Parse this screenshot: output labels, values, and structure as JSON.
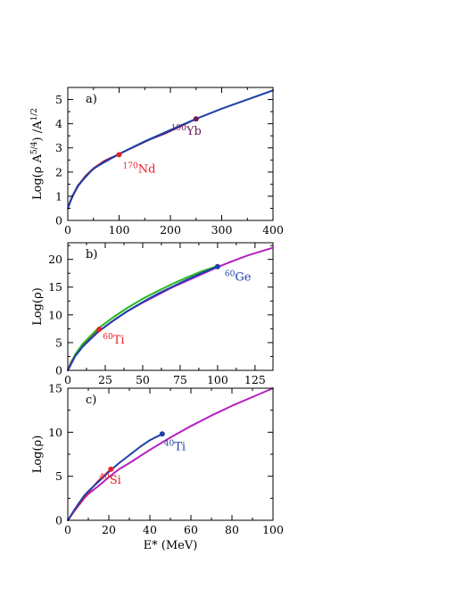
{
  "chart_data": [
    {
      "type": "line",
      "panel_label": "a)",
      "xlabel": "",
      "ylabel": "Log(ρ A^{5/4}) /A^{1/2}",
      "xlim": [
        0,
        400
      ],
      "ylim": [
        0,
        5.5
      ],
      "xticks": [
        0,
        100,
        200,
        300,
        400
      ],
      "yticks": [
        0,
        1,
        2,
        3,
        4,
        5
      ],
      "grid": false,
      "series": [
        {
          "name": "170Nd",
          "color": "#e8202a",
          "x": [
            0,
            2,
            5,
            10,
            20,
            35,
            50,
            70,
            85,
            100
          ],
          "y": [
            0.5,
            0.62,
            0.8,
            1.05,
            1.45,
            1.85,
            2.15,
            2.45,
            2.6,
            2.72
          ]
        },
        {
          "name": "190Yb",
          "color": "#6b1a5a",
          "x": [
            0,
            2,
            5,
            10,
            20,
            35,
            50,
            70,
            100,
            130,
            160,
            190,
            220,
            250
          ],
          "y": [
            0.48,
            0.6,
            0.78,
            1.03,
            1.42,
            1.83,
            2.13,
            2.42,
            2.75,
            3.05,
            3.35,
            3.6,
            3.9,
            4.2
          ]
        },
        {
          "name": "",
          "color": "#1f3fa8",
          "x": [
            0,
            5,
            10,
            20,
            50,
            100,
            150,
            200,
            250,
            300,
            350,
            400
          ],
          "y": [
            0.5,
            0.8,
            1.05,
            1.45,
            2.15,
            2.75,
            3.27,
            3.74,
            4.2,
            4.62,
            5.0,
            5.38
          ]
        }
      ],
      "markers": [
        {
          "label": "170",
          "element": "Nd",
          "x": 100,
          "y": 2.72,
          "color": "#e8202a",
          "label_color": "#e8202a"
        },
        {
          "label": "190",
          "element": "Yb",
          "x": 250,
          "y": 4.2,
          "color": "#6b1a5a",
          "label_color": "#6b1a5a"
        }
      ]
    },
    {
      "type": "line",
      "panel_label": "b)",
      "xlabel": "",
      "ylabel": "Log(ρ)",
      "xlim": [
        0,
        137
      ],
      "ylim": [
        0,
        23
      ],
      "xticks": [
        0,
        25,
        50,
        75,
        100,
        125
      ],
      "yticks": [
        0,
        5,
        10,
        15,
        20
      ],
      "grid": false,
      "series": [
        {
          "name": "",
          "color": "#b61fbf",
          "x": [
            0,
            5,
            10,
            20,
            30,
            40,
            50,
            60,
            70,
            80,
            90,
            100,
            110,
            120,
            137
          ],
          "y": [
            0,
            2.6,
            4.3,
            6.9,
            8.9,
            10.7,
            12.2,
            13.6,
            15.0,
            16.2,
            17.4,
            18.6,
            19.7,
            20.7,
            22.1
          ]
        },
        {
          "name": "60Ti",
          "color": "#e8202a",
          "x": [
            0,
            2,
            5,
            10,
            15,
            21
          ],
          "y": [
            0,
            1.4,
            2.8,
            4.6,
            6.0,
            7.4
          ]
        },
        {
          "name": "",
          "color": "#22b822",
          "x": [
            0,
            5,
            10,
            20,
            30,
            40,
            50,
            60,
            70,
            80,
            90,
            100
          ],
          "y": [
            0,
            2.9,
            4.8,
            7.5,
            9.5,
            11.3,
            12.9,
            14.3,
            15.6,
            16.8,
            17.9,
            18.8
          ]
        },
        {
          "name": "60Ge",
          "color": "#1f3fa8",
          "x": [
            0,
            5,
            10,
            20,
            30,
            40,
            50,
            60,
            70,
            80,
            90,
            100
          ],
          "y": [
            0,
            2.6,
            4.3,
            6.9,
            8.9,
            10.7,
            12.3,
            13.8,
            15.1,
            16.4,
            17.6,
            18.7
          ]
        }
      ],
      "markers": [
        {
          "label": "60",
          "element": "Ti",
          "x": 21,
          "y": 7.4,
          "color": "#e8202a",
          "label_color": "#e8202a"
        },
        {
          "label": "60",
          "element": "Ge",
          "x": 100,
          "y": 18.7,
          "color": "#1f3fa8",
          "label_color": "#1f3fa8"
        }
      ]
    },
    {
      "type": "line",
      "panel_label": "c)",
      "xlabel": "E* (MeV)",
      "ylabel": "Log(ρ)",
      "xlim": [
        0,
        100
      ],
      "ylim": [
        0,
        15
      ],
      "xticks": [
        0,
        20,
        40,
        60,
        80,
        100
      ],
      "yticks": [
        0,
        5,
        10,
        15
      ],
      "grid": false,
      "series": [
        {
          "name": "",
          "color": "#b61fbf",
          "x": [
            0,
            3,
            5,
            8,
            10,
            15,
            20,
            25,
            30,
            40,
            50,
            60,
            70,
            80,
            90,
            100
          ],
          "y": [
            0,
            1.0,
            1.6,
            2.5,
            3.0,
            3.9,
            4.9,
            5.8,
            6.5,
            8.0,
            9.4,
            10.7,
            11.9,
            13.0,
            14.0,
            15.0
          ]
        },
        {
          "name": "40Si",
          "color": "#e8202a",
          "x": [
            0,
            3,
            5,
            8,
            10,
            15,
            21
          ],
          "y": [
            0,
            1.0,
            1.7,
            2.6,
            3.2,
            4.5,
            5.8
          ]
        },
        {
          "name": "40Ti",
          "color": "#1f3fa8",
          "x": [
            0,
            3,
            5,
            8,
            10,
            15,
            20,
            25,
            30,
            35,
            40,
            46
          ],
          "y": [
            0,
            1.1,
            1.8,
            2.8,
            3.3,
            4.4,
            5.5,
            6.5,
            7.4,
            8.3,
            9.1,
            9.8
          ]
        }
      ],
      "markers": [
        {
          "label": "40",
          "element": "Si",
          "x": 21,
          "y": 5.8,
          "color": "#e8202a",
          "label_color": "#e8202a"
        },
        {
          "label": "40",
          "element": "Ti",
          "x": 46,
          "y": 9.8,
          "color": "#1f3fa8",
          "label_color": "#1f3fa8"
        }
      ]
    }
  ]
}
